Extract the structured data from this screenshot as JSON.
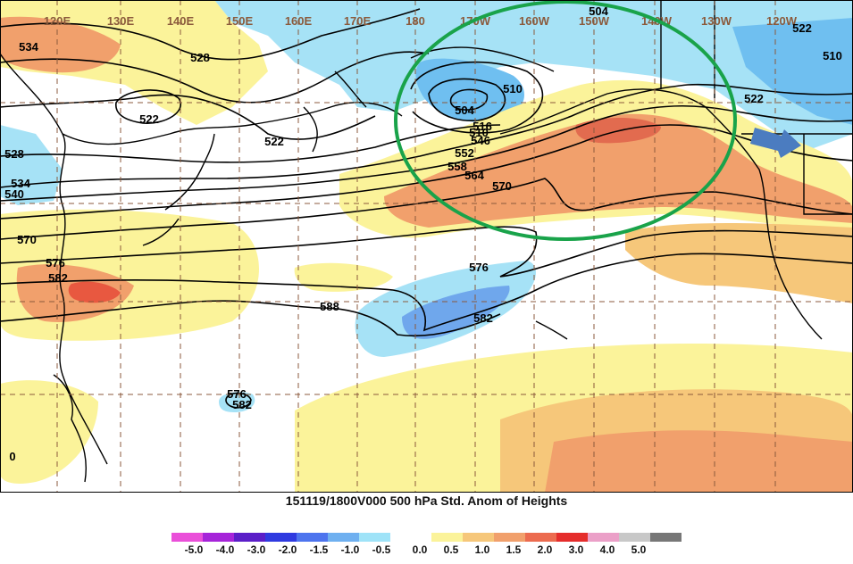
{
  "map": {
    "longitude_labels": [
      "120E",
      "130E",
      "140E",
      "150E",
      "160E",
      "170E",
      "180",
      "170W",
      "160W",
      "150W",
      "140W",
      "130W",
      "120W"
    ],
    "contour_labels": [
      "534",
      "528",
      "522",
      "522",
      "528",
      "534",
      "540",
      "570",
      "576",
      "582",
      "588",
      "504",
      "510",
      "516",
      "522",
      "504",
      "510",
      "546",
      "552",
      "558",
      "564",
      "570",
      "576",
      "582",
      "510",
      "522",
      "576",
      "582",
      "0"
    ],
    "caption": "151119/1800V000 500 hPa Std. Anom of Heights"
  },
  "annotations": {
    "circle_color": "#19a34a",
    "arrow_color": "#4b7cc0"
  },
  "legend": {
    "labels": [
      "-5.0",
      "-4.0",
      "-3.0",
      "-2.0",
      "-1.5",
      "-1.0",
      "-0.5",
      "0.0",
      "0.5",
      "1.0",
      "1.5",
      "2.0",
      "3.0",
      "4.0",
      "5.0"
    ],
    "negative_colors": [
      "#ea4fd9",
      "#a624d9",
      "#5b1ec8",
      "#2f3ae0",
      "#4d74ee",
      "#6fb0f0",
      "#9fe3f8"
    ],
    "positive_colors": [
      "#fbf39a",
      "#f6c77a",
      "#f1a06c",
      "#ec6b4f",
      "#e52d2b",
      "#eba0c8",
      "#c8c8c8",
      "#777777"
    ]
  }
}
